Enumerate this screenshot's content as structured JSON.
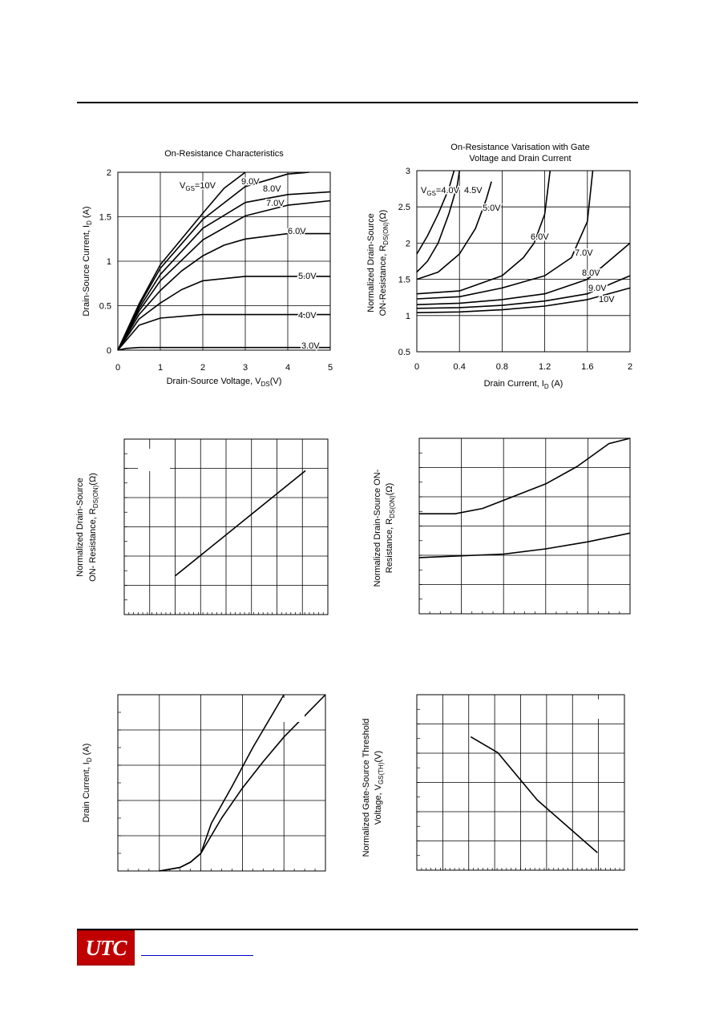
{
  "header": {},
  "footer": {
    "logo_text": "UTC",
    "link_color": "#0000cc",
    "logo_color": "#c00000"
  },
  "charts": [
    {
      "type": "line",
      "title": "On-Resistance Characteristics",
      "xlabel": "Drain-Source Voltage, V",
      "xlabel_sub": "DS",
      "xlabel_tail": "(V)",
      "ylabel": "Drain-Source Current, I",
      "ylabel_sub": "D",
      "ylabel_tail": " (A)",
      "xlim": [
        0,
        5
      ],
      "ylim": [
        0,
        2
      ],
      "xticks": [
        "0",
        "1",
        "2",
        "3",
        "4",
        "5"
      ],
      "yticks": [
        "0",
        "0.5",
        "1",
        "1.5",
        "2"
      ],
      "labels": [
        "V",
        "GS",
        "=10V",
        "9.0V",
        "8.0V",
        "7.0V",
        "6.0V",
        "5.0V",
        "4.0V",
        "3.0V"
      ],
      "series": [
        {
          "name": "3.0V",
          "x": [
            0,
            0.2,
            0.5,
            1,
            2,
            3,
            4,
            5
          ],
          "y": [
            0,
            0.02,
            0.03,
            0.03,
            0.03,
            0.03,
            0.03,
            0.03
          ]
        },
        {
          "name": "4.0V",
          "x": [
            0,
            0.5,
            1,
            2,
            3,
            4,
            5
          ],
          "y": [
            0,
            0.28,
            0.36,
            0.4,
            0.4,
            0.4,
            0.4
          ]
        },
        {
          "name": "5.0V",
          "x": [
            0,
            0.5,
            1,
            1.5,
            2,
            3,
            4,
            5
          ],
          "y": [
            0,
            0.35,
            0.53,
            0.68,
            0.78,
            0.83,
            0.83,
            0.83
          ]
        },
        {
          "name": "6.0V",
          "x": [
            0,
            0.5,
            1,
            1.5,
            2,
            2.5,
            3,
            4,
            5
          ],
          "y": [
            0,
            0.4,
            0.67,
            0.89,
            1.06,
            1.18,
            1.25,
            1.31,
            1.31
          ]
        },
        {
          "name": "7.0V",
          "x": [
            0,
            0.5,
            1,
            2,
            3,
            4,
            5
          ],
          "y": [
            0,
            0.44,
            0.78,
            1.24,
            1.51,
            1.63,
            1.68
          ]
        },
        {
          "name": "8.0V",
          "x": [
            0,
            0.5,
            1,
            2,
            3,
            4,
            5
          ],
          "y": [
            0,
            0.47,
            0.85,
            1.37,
            1.66,
            1.75,
            1.78
          ]
        },
        {
          "name": "9.0V",
          "x": [
            0,
            0.5,
            1,
            2,
            3,
            4,
            4.5
          ],
          "y": [
            0,
            0.5,
            0.92,
            1.47,
            1.84,
            1.98,
            2.0
          ]
        },
        {
          "name": "10V",
          "x": [
            0,
            0.5,
            1,
            2,
            2.5,
            3
          ],
          "y": [
            0,
            0.52,
            0.96,
            1.54,
            1.82,
            2.0
          ]
        }
      ]
    },
    {
      "type": "line",
      "title": "On-Resistance Varisation with Gate",
      "title2": "Voltage and Drain Current",
      "xlabel": "Drain Current, I",
      "xlabel_sub": "D",
      "xlabel_tail": " (A)",
      "ylabel": "Normalized Drain-Source",
      "ylabel2": "ON-Resistance, R",
      "ylabel2_sub": "DS(ON)",
      "ylabel2_tail": "(Ω)",
      "xlim": [
        0,
        2
      ],
      "ylim": [
        0.5,
        3
      ],
      "xticks": [
        "0",
        "0.4",
        "0.8",
        "1.2",
        "1.6",
        "2"
      ],
      "yticks": [
        "0.5",
        "1",
        "1.5",
        "2",
        "2.5",
        "3"
      ],
      "labels": [
        "V",
        "GS",
        "=4.0V",
        "4.5V",
        "5.0V",
        "6.0V",
        "7.0V",
        "8.0V",
        "9.0V",
        "10V"
      ],
      "series": [
        {
          "name": "4.0V",
          "x": [
            0,
            0.1,
            0.2,
            0.3,
            0.35
          ],
          "y": [
            1.85,
            2.1,
            2.4,
            2.75,
            3.0
          ]
        },
        {
          "name": "4.5V",
          "x": [
            0,
            0.1,
            0.2,
            0.3,
            0.38,
            0.4
          ],
          "y": [
            1.6,
            1.75,
            2.0,
            2.4,
            2.8,
            3.0
          ]
        },
        {
          "name": "5.0V",
          "x": [
            0,
            0.2,
            0.4,
            0.55,
            0.65,
            0.7
          ],
          "y": [
            1.5,
            1.6,
            1.85,
            2.2,
            2.6,
            2.85
          ]
        },
        {
          "name": "6.0V",
          "x": [
            0,
            0.4,
            0.8,
            1.0,
            1.1,
            1.2,
            1.25
          ],
          "y": [
            1.3,
            1.34,
            1.55,
            1.8,
            2.0,
            2.4,
            3.0
          ]
        },
        {
          "name": "7.0V",
          "x": [
            0,
            0.4,
            0.8,
            1.2,
            1.45,
            1.6,
            1.65
          ],
          "y": [
            1.23,
            1.26,
            1.38,
            1.55,
            1.8,
            2.3,
            3.0
          ]
        },
        {
          "name": "8.0V",
          "x": [
            0,
            0.4,
            0.8,
            1.2,
            1.6,
            2.0
          ],
          "y": [
            1.15,
            1.17,
            1.22,
            1.3,
            1.5,
            2.0
          ]
        },
        {
          "name": "9.0V",
          "x": [
            0,
            0.4,
            0.8,
            1.2,
            1.6,
            2.0
          ],
          "y": [
            1.1,
            1.11,
            1.14,
            1.2,
            1.3,
            1.55
          ]
        },
        {
          "name": "10V",
          "x": [
            0,
            0.4,
            0.8,
            1.2,
            1.6,
            2.0
          ],
          "y": [
            1.04,
            1.05,
            1.08,
            1.13,
            1.22,
            1.38
          ]
        }
      ]
    },
    {
      "type": "line",
      "ylabel": "Normalized Drain-Source",
      "ylabel2": "ON- Resistance, R",
      "ylabel2_sub": "DS(ON)",
      "ylabel2_tail": "(Ω)",
      "xlim": [
        0,
        1
      ],
      "ylim": [
        0,
        1
      ],
      "series": [
        {
          "name": "",
          "x": [
            0.25,
            0.89
          ],
          "y": [
            0.22,
            0.82
          ]
        }
      ]
    },
    {
      "type": "line",
      "ylabel": "Normalized Drain-Source ON-",
      "ylabel2": "Resistance, R",
      "ylabel2_sub": "DS(ON)",
      "ylabel2_tail": "(Ω)",
      "xlim": [
        0,
        1
      ],
      "ylim": [
        0,
        1
      ],
      "series": [
        {
          "name": "",
          "x": [
            0,
            0.17,
            0.3,
            0.45,
            0.6,
            0.75,
            0.9,
            1.0
          ],
          "y": [
            0.57,
            0.57,
            0.6,
            0.67,
            0.74,
            0.84,
            0.97,
            1.0
          ]
        },
        {
          "name": "",
          "x": [
            0,
            0.2,
            0.4,
            0.6,
            0.8,
            1.0
          ],
          "y": [
            0.32,
            0.33,
            0.34,
            0.37,
            0.41,
            0.46
          ]
        }
      ]
    },
    {
      "type": "line",
      "ylabel": "Drain Current, I",
      "ylabel_sub": "D",
      "ylabel_tail": " (A)",
      "xlim": [
        0,
        1
      ],
      "ylim": [
        0,
        1
      ],
      "series": [
        {
          "name": "",
          "x": [
            0.2,
            0.3,
            0.35,
            0.4,
            0.45,
            0.55,
            0.65,
            0.75,
            0.8
          ],
          "y": [
            0.0,
            0.02,
            0.05,
            0.1,
            0.27,
            0.48,
            0.7,
            0.9,
            1.0
          ]
        },
        {
          "name": "",
          "x": [
            0.2,
            0.3,
            0.35,
            0.4,
            0.5,
            0.6,
            0.7,
            0.8,
            0.9,
            1.0
          ],
          "y": [
            0.0,
            0.02,
            0.05,
            0.1,
            0.3,
            0.47,
            0.62,
            0.76,
            0.88,
            1.0
          ]
        }
      ]
    },
    {
      "type": "line",
      "ylabel": "Normalized Gate-Source Threshold",
      "ylabel2": "Voltage, V",
      "ylabel2_sub": "GS(TH)",
      "ylabel2_tail": "(V)",
      "xlim": [
        0,
        1
      ],
      "ylim": [
        0,
        1
      ],
      "series": [
        {
          "name": "",
          "x": [
            0.26,
            0.39,
            0.58,
            0.87
          ],
          "y": [
            0.76,
            0.67,
            0.4,
            0.1
          ]
        }
      ]
    }
  ]
}
